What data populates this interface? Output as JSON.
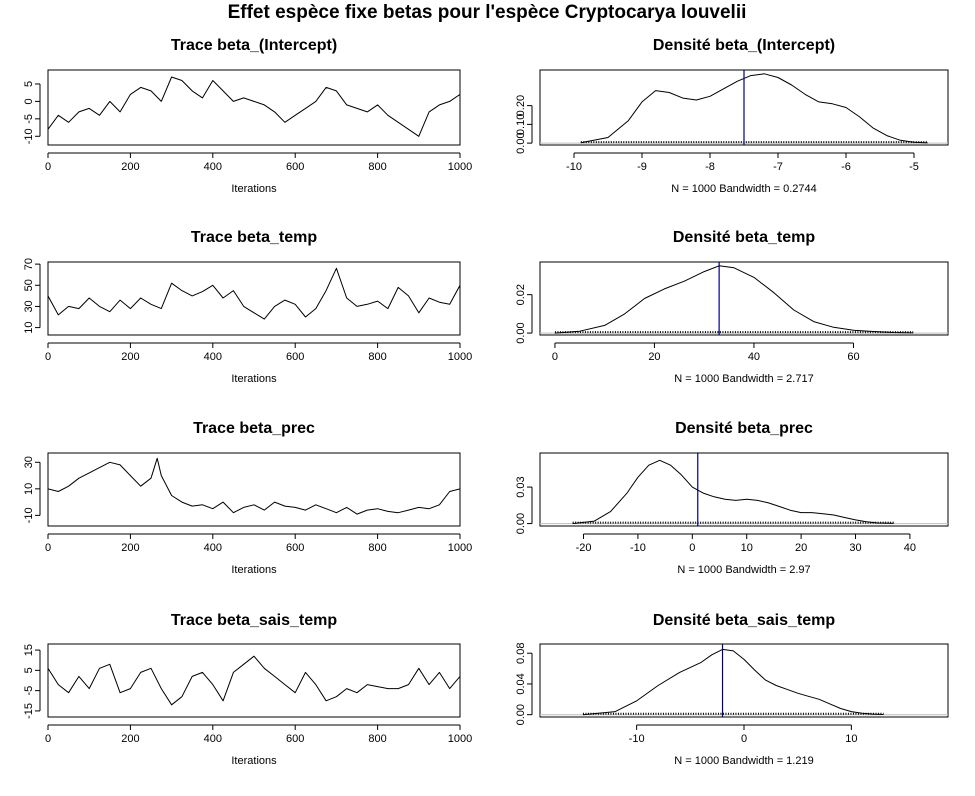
{
  "figure": {
    "title": "Effet espèce fixe betas pour l'espèce  Cryptocarya louvelii"
  },
  "chart_data": [
    {
      "id": "trace-intercept",
      "type": "line",
      "title": "Trace  beta_(Intercept)",
      "xlabel": "Iterations",
      "ylabel": "",
      "xlim": [
        0,
        1000
      ],
      "ylim": [
        -12.5,
        9
      ],
      "xticks": [
        "0",
        "200",
        "400",
        "600",
        "800",
        "1000"
      ],
      "yticks": [
        "-10",
        "-5",
        "0",
        "5"
      ],
      "grid": false,
      "series": [
        {
          "x": [
            0,
            25,
            50,
            75,
            100,
            125,
            150,
            175,
            200,
            225,
            250,
            275,
            300,
            325,
            350,
            375,
            400,
            425,
            450,
            475,
            500,
            525,
            550,
            575,
            600,
            625,
            650,
            675,
            700,
            725,
            750,
            775,
            800,
            825,
            850,
            875,
            900,
            925,
            950,
            975,
            1000
          ],
          "y": [
            -8,
            -4,
            -6,
            -3,
            -2,
            -4,
            0,
            -3,
            2,
            4,
            3,
            0,
            7,
            6,
            3,
            1,
            6,
            3,
            0,
            1,
            0,
            -1,
            -3,
            -6,
            -4,
            -2,
            0,
            4,
            3,
            -1,
            -2,
            -3,
            -1,
            -4,
            -6,
            -8,
            -10,
            -3,
            -1,
            0,
            2
          ]
        }
      ]
    },
    {
      "id": "density-intercept",
      "type": "line",
      "title": "Densité  beta_(Intercept)",
      "xlabel": "N = 1000   Bandwidth = 0.2744",
      "ylabel": "",
      "xlim": [
        -10.5,
        -4.5
      ],
      "ylim": [
        -0.01,
        0.39
      ],
      "xticks": [
        "-10",
        "-9",
        "-8",
        "-7",
        "-6",
        "-5"
      ],
      "yticks": [
        "0.00",
        "0.10",
        "0.20"
      ],
      "vline": -7.5,
      "grid": false,
      "series": [
        {
          "x": [
            -9.9,
            -9.5,
            -9.2,
            -9.0,
            -8.8,
            -8.6,
            -8.4,
            -8.2,
            -8.0,
            -7.8,
            -7.6,
            -7.4,
            -7.2,
            -7.0,
            -6.8,
            -6.6,
            -6.4,
            -6.2,
            -6.0,
            -5.8,
            -5.6,
            -5.4,
            -5.2,
            -5.0,
            -4.8
          ],
          "y": [
            0.002,
            0.03,
            0.12,
            0.22,
            0.28,
            0.27,
            0.24,
            0.23,
            0.25,
            0.29,
            0.33,
            0.36,
            0.37,
            0.35,
            0.31,
            0.26,
            0.22,
            0.21,
            0.19,
            0.14,
            0.08,
            0.04,
            0.015,
            0.005,
            0.001
          ]
        }
      ]
    },
    {
      "id": "trace-temp",
      "type": "line",
      "title": "Trace  beta_temp",
      "xlabel": "Iterations",
      "ylabel": "",
      "xlim": [
        0,
        1000
      ],
      "ylim": [
        3,
        72
      ],
      "xticks": [
        "0",
        "200",
        "400",
        "600",
        "800",
        "1000"
      ],
      "yticks": [
        "10",
        "30",
        "50",
        "70"
      ],
      "grid": false,
      "series": [
        {
          "x": [
            0,
            25,
            50,
            75,
            100,
            125,
            150,
            175,
            200,
            225,
            250,
            275,
            300,
            325,
            350,
            375,
            400,
            425,
            450,
            475,
            500,
            525,
            550,
            575,
            600,
            625,
            650,
            675,
            700,
            725,
            750,
            775,
            800,
            825,
            850,
            875,
            900,
            925,
            950,
            975,
            1000
          ],
          "y": [
            40,
            22,
            30,
            28,
            38,
            30,
            25,
            36,
            28,
            38,
            32,
            28,
            52,
            45,
            40,
            44,
            50,
            38,
            45,
            30,
            24,
            18,
            30,
            36,
            32,
            20,
            28,
            45,
            66,
            38,
            30,
            32,
            35,
            28,
            48,
            40,
            24,
            38,
            34,
            32,
            50
          ]
        }
      ]
    },
    {
      "id": "density-temp",
      "type": "line",
      "title": "Densité  beta_temp",
      "xlabel": "N = 1000   Bandwidth = 2.717",
      "ylabel": "",
      "xlim": [
        -3,
        79
      ],
      "ylim": [
        -0.001,
        0.037
      ],
      "xticks": [
        "0",
        "20",
        "40",
        "60"
      ],
      "yticks": [
        "0.00",
        "0.02"
      ],
      "vline": 33,
      "grid": false,
      "series": [
        {
          "x": [
            0,
            5,
            10,
            14,
            18,
            22,
            26,
            30,
            33,
            36,
            40,
            44,
            48,
            52,
            56,
            60,
            64,
            68,
            72
          ],
          "y": [
            0.0,
            0.001,
            0.004,
            0.01,
            0.018,
            0.023,
            0.027,
            0.032,
            0.035,
            0.034,
            0.029,
            0.021,
            0.012,
            0.006,
            0.003,
            0.0015,
            0.0008,
            0.0003,
            0.0001
          ]
        }
      ]
    },
    {
      "id": "trace-prec",
      "type": "line",
      "title": "Trace  beta_prec",
      "xlabel": "Iterations",
      "ylabel": "",
      "xlim": [
        0,
        1000
      ],
      "ylim": [
        -18,
        37
      ],
      "xticks": [
        "0",
        "200",
        "400",
        "600",
        "800",
        "1000"
      ],
      "yticks": [
        "-10",
        "10",
        "30"
      ],
      "grid": false,
      "series": [
        {
          "x": [
            0,
            25,
            50,
            75,
            100,
            125,
            150,
            175,
            200,
            225,
            250,
            265,
            275,
            300,
            325,
            350,
            375,
            400,
            425,
            450,
            475,
            500,
            525,
            550,
            575,
            600,
            625,
            650,
            675,
            700,
            725,
            750,
            775,
            800,
            825,
            850,
            875,
            900,
            925,
            950,
            975,
            1000
          ],
          "y": [
            10,
            8,
            12,
            18,
            22,
            26,
            30,
            28,
            20,
            12,
            18,
            33,
            20,
            5,
            0,
            -3,
            -2,
            -5,
            0,
            -8,
            -4,
            -2,
            -6,
            0,
            -3,
            -4,
            -6,
            -2,
            -5,
            -8,
            -4,
            -9,
            -6,
            -5,
            -7,
            -8,
            -6,
            -4,
            -5,
            -2,
            8,
            10
          ]
        }
      ]
    },
    {
      "id": "density-prec",
      "type": "line",
      "title": "Densité  beta_prec",
      "xlabel": "N = 1000   Bandwidth = 2.97",
      "ylabel": "",
      "xlim": [
        -28,
        47
      ],
      "ylim": [
        -0.002,
        0.058
      ],
      "xticks": [
        "-20",
        "-10",
        "0",
        "10",
        "20",
        "30",
        "40"
      ],
      "yticks": [
        "0.00",
        "0.03"
      ],
      "vline": 1,
      "grid": false,
      "series": [
        {
          "x": [
            -22,
            -18,
            -15,
            -12,
            -10,
            -8,
            -6,
            -4,
            -2,
            0,
            2,
            4,
            6,
            8,
            10,
            12,
            14,
            16,
            18,
            20,
            22,
            24,
            26,
            28,
            30,
            32,
            34,
            37
          ],
          "y": [
            0.0,
            0.002,
            0.01,
            0.025,
            0.038,
            0.048,
            0.052,
            0.048,
            0.04,
            0.03,
            0.025,
            0.022,
            0.02,
            0.019,
            0.02,
            0.019,
            0.017,
            0.014,
            0.011,
            0.009,
            0.009,
            0.008,
            0.007,
            0.005,
            0.003,
            0.0015,
            0.0005,
            0.0001
          ]
        }
      ]
    },
    {
      "id": "trace-sais-temp",
      "type": "line",
      "title": "Trace  beta_sais_temp",
      "xlabel": "Iterations",
      "ylabel": "",
      "xlim": [
        0,
        1000
      ],
      "ylim": [
        -18,
        18
      ],
      "xticks": [
        "0",
        "200",
        "400",
        "600",
        "800",
        "1000"
      ],
      "yticks": [
        "-15",
        "-5",
        "5",
        "15"
      ],
      "grid": false,
      "series": [
        {
          "x": [
            0,
            25,
            50,
            75,
            100,
            125,
            150,
            175,
            200,
            225,
            250,
            275,
            300,
            325,
            350,
            375,
            400,
            425,
            450,
            475,
            500,
            525,
            550,
            575,
            600,
            625,
            650,
            675,
            700,
            725,
            750,
            775,
            800,
            825,
            850,
            875,
            900,
            925,
            950,
            975,
            1000
          ],
          "y": [
            6,
            -2,
            -6,
            2,
            -4,
            6,
            8,
            -6,
            -4,
            4,
            6,
            -4,
            -12,
            -8,
            2,
            4,
            -2,
            -10,
            4,
            8,
            12,
            6,
            2,
            -2,
            -6,
            4,
            -2,
            -10,
            -8,
            -4,
            -6,
            -2,
            -3,
            -4,
            -4,
            -2,
            6,
            -2,
            4,
            -4,
            2
          ]
        }
      ]
    },
    {
      "id": "density-sais-temp",
      "type": "line",
      "title": "Densité  beta_sais_temp",
      "xlabel": "N = 1000   Bandwidth = 1.219",
      "ylabel": "",
      "xlim": [
        -19,
        19
      ],
      "ylim": [
        -0.003,
        0.092
      ],
      "xticks": [
        "-10",
        "0",
        "10"
      ],
      "yticks": [
        "0.00",
        "0.04",
        "0.08"
      ],
      "vline": -2,
      "grid": false,
      "series": [
        {
          "x": [
            -15,
            -12,
            -10,
            -8,
            -6,
            -4,
            -3,
            -2,
            -1,
            0,
            1,
            2,
            3,
            4,
            5,
            6,
            7,
            8,
            9,
            10,
            11,
            12,
            13
          ],
          "y": [
            0.0,
            0.004,
            0.018,
            0.038,
            0.055,
            0.068,
            0.078,
            0.085,
            0.083,
            0.072,
            0.058,
            0.045,
            0.038,
            0.033,
            0.028,
            0.024,
            0.02,
            0.014,
            0.008,
            0.004,
            0.002,
            0.0008,
            0.0002
          ]
        }
      ]
    }
  ],
  "colors": {
    "line": "#000000",
    "vline": "#00007f",
    "baseline": "#bebebe"
  }
}
